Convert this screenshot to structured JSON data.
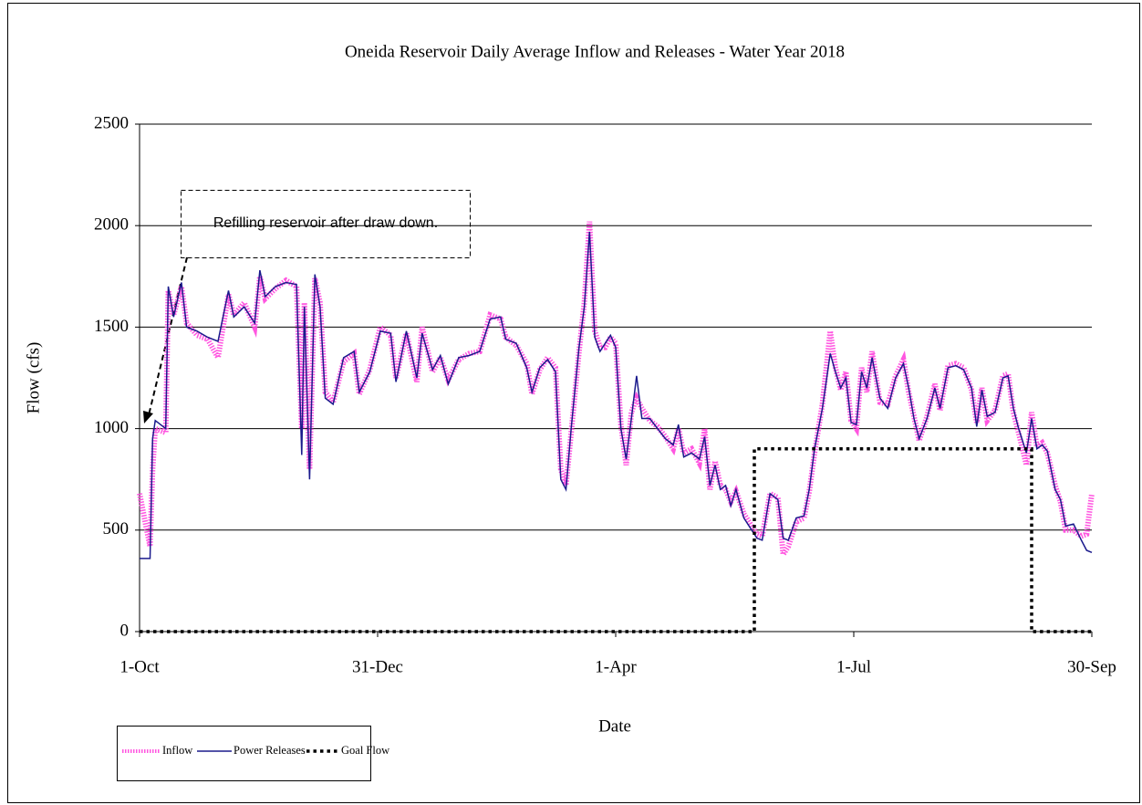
{
  "chart_data": {
    "type": "line",
    "title": "Oneida Reservoir  Daily Average Inflow and Releases  - Water Year 2018",
    "x_label": "Date",
    "y_label": "Flow  (cfs)",
    "xlim": [
      0,
      364
    ],
    "ylim": [
      0,
      2500
    ],
    "xticks": [
      {
        "value": 0,
        "label": "1-Oct"
      },
      {
        "value": 91,
        "label": "31-Dec"
      },
      {
        "value": 182,
        "label": "1-Apr"
      },
      {
        "value": 273,
        "label": "1-Jul"
      },
      {
        "value": 364,
        "label": "30-Sep"
      }
    ],
    "yticks": [
      0,
      500,
      1000,
      1500,
      2000,
      2500
    ],
    "grid": true,
    "annotations": [
      {
        "text": "Refilling reservoir after draw down."
      }
    ],
    "series": [
      {
        "name": "Inflow",
        "color": "#ff44dd",
        "style": "dotted-thick",
        "x": [
          0,
          4,
          5,
          6,
          10,
          11,
          13,
          16,
          18,
          22,
          26,
          30,
          34,
          36,
          40,
          44,
          46,
          48,
          52,
          56,
          60,
          62,
          63,
          65,
          67,
          69,
          71,
          74,
          78,
          82,
          84,
          88,
          92,
          96,
          98,
          102,
          106,
          108,
          112,
          115,
          118,
          122,
          126,
          130,
          134,
          138,
          140,
          144,
          148,
          150,
          153,
          156,
          159,
          161,
          163,
          165,
          168,
          170,
          172,
          174,
          176,
          178,
          180,
          182,
          184,
          186,
          188,
          190,
          192,
          195,
          198,
          201,
          204,
          206,
          208,
          211,
          214,
          216,
          218,
          220,
          222,
          224,
          226,
          228,
          231,
          234,
          236,
          238,
          241,
          244,
          246,
          248,
          251,
          254,
          256,
          258,
          261,
          264,
          266,
          268,
          270,
          272,
          274,
          276,
          278,
          280,
          283,
          286,
          289,
          292,
          294,
          296,
          298,
          301,
          304,
          306,
          309,
          312,
          315,
          318,
          320,
          322,
          324,
          327,
          330,
          332,
          334,
          336,
          339,
          341,
          343,
          345,
          347,
          350,
          352,
          354,
          357,
          360,
          362,
          364
        ],
        "values": [
          680,
          420,
          800,
          1000,
          980,
          1680,
          1560,
          1700,
          1520,
          1460,
          1440,
          1350,
          1660,
          1560,
          1620,
          1500,
          1750,
          1640,
          1690,
          1730,
          1700,
          1000,
          1620,
          800,
          1740,
          1620,
          1180,
          1130,
          1330,
          1370,
          1170,
          1290,
          1500,
          1460,
          1250,
          1470,
          1230,
          1500,
          1280,
          1350,
          1240,
          1340,
          1370,
          1380,
          1560,
          1540,
          1450,
          1410,
          1320,
          1170,
          1290,
          1350,
          1300,
          800,
          720,
          980,
          1380,
          1620,
          2020,
          1480,
          1400,
          1400,
          1450,
          1420,
          1020,
          820,
          1080,
          1150,
          1100,
          1040,
          1010,
          960,
          900,
          1000,
          880,
          900,
          830,
          1000,
          700,
          840,
          720,
          700,
          640,
          690,
          580,
          520,
          480,
          470,
          680,
          660,
          380,
          420,
          540,
          560,
          690,
          880,
          1120,
          1480,
          1300,
          1190,
          1280,
          1040,
          1000,
          1300,
          1180,
          1380,
          1130,
          1120,
          1260,
          1340,
          1180,
          1060,
          940,
          1060,
          1220,
          1090,
          1310,
          1320,
          1300,
          1190,
          1030,
          1200,
          1040,
          1090,
          1260,
          1270,
          1080,
          980,
          820,
          1080,
          910,
          930,
          880,
          720,
          640,
          500,
          500,
          470,
          480,
          680
        ]
      },
      {
        "name": "Power Releases",
        "color": "#1a1a8c",
        "style": "solid",
        "x": [
          0,
          4,
          5,
          6,
          10,
          11,
          13,
          16,
          18,
          22,
          26,
          30,
          34,
          36,
          40,
          44,
          46,
          48,
          52,
          56,
          60,
          62,
          63,
          65,
          67,
          69,
          71,
          74,
          78,
          82,
          84,
          88,
          92,
          96,
          98,
          102,
          106,
          108,
          112,
          115,
          118,
          122,
          126,
          130,
          134,
          138,
          140,
          144,
          148,
          150,
          153,
          156,
          159,
          161,
          163,
          165,
          168,
          170,
          172,
          174,
          176,
          178,
          180,
          182,
          184,
          186,
          188,
          190,
          192,
          195,
          198,
          201,
          204,
          206,
          208,
          211,
          214,
          216,
          218,
          220,
          222,
          224,
          226,
          228,
          231,
          234,
          236,
          238,
          241,
          244,
          246,
          248,
          251,
          254,
          256,
          258,
          261,
          264,
          266,
          268,
          270,
          272,
          274,
          276,
          278,
          280,
          283,
          286,
          289,
          292,
          294,
          296,
          298,
          301,
          304,
          306,
          309,
          312,
          315,
          318,
          320,
          322,
          324,
          327,
          330,
          332,
          334,
          336,
          339,
          341,
          343,
          345,
          347,
          350,
          352,
          354,
          357,
          360,
          362,
          364
        ],
        "values": [
          360,
          360,
          950,
          1040,
          1000,
          1700,
          1550,
          1720,
          1500,
          1480,
          1450,
          1430,
          1680,
          1550,
          1600,
          1520,
          1780,
          1650,
          1700,
          1720,
          1710,
          870,
          1600,
          750,
          1760,
          1600,
          1150,
          1120,
          1350,
          1380,
          1180,
          1280,
          1480,
          1470,
          1230,
          1480,
          1250,
          1470,
          1290,
          1360,
          1220,
          1350,
          1360,
          1380,
          1540,
          1550,
          1440,
          1420,
          1300,
          1180,
          1300,
          1340,
          1280,
          750,
          700,
          1000,
          1400,
          1600,
          1970,
          1450,
          1380,
          1420,
          1460,
          1400,
          1000,
          850,
          1050,
          1260,
          1050,
          1050,
          1000,
          950,
          920,
          1020,
          860,
          880,
          850,
          960,
          720,
          820,
          700,
          720,
          620,
          700,
          560,
          500,
          460,
          450,
          680,
          650,
          460,
          450,
          560,
          570,
          700,
          900,
          1100,
          1370,
          1280,
          1200,
          1250,
          1030,
          1020,
          1280,
          1200,
          1350,
          1150,
          1100,
          1250,
          1320,
          1200,
          1050,
          950,
          1050,
          1200,
          1100,
          1300,
          1310,
          1290,
          1200,
          1010,
          1190,
          1060,
          1080,
          1250,
          1260,
          1100,
          1000,
          880,
          1050,
          900,
          920,
          890,
          700,
          650,
          520,
          530,
          450,
          400,
          390
        ]
      },
      {
        "name": "Goal Flow",
        "color": "#000000",
        "style": "dotted",
        "x": [
          0,
          235,
          235,
          341,
          341,
          364
        ],
        "values": [
          0,
          0,
          900,
          900,
          0,
          0
        ]
      }
    ]
  }
}
